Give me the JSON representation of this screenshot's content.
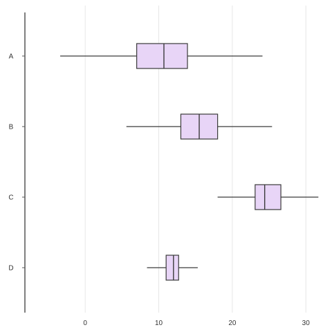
{
  "chart_data": {
    "type": "boxplot",
    "orientation": "horizontal",
    "title": "",
    "xlabel": "",
    "ylabel": "",
    "categories": [
      "A",
      "B",
      "C",
      "D"
    ],
    "boxes": [
      {
        "category": "A",
        "whisker_low": -3.4,
        "q1": 7.0,
        "median": 10.7,
        "q3": 13.9,
        "whisker_high": 24.1
      },
      {
        "category": "B",
        "whisker_low": 5.6,
        "q1": 13.0,
        "median": 15.5,
        "q3": 18.0,
        "whisker_high": 25.4
      },
      {
        "category": "C",
        "whisker_low": 18.0,
        "q1": 23.1,
        "median": 24.4,
        "q3": 26.6,
        "whisker_high": 31.7
      },
      {
        "category": "D",
        "whisker_low": 8.4,
        "q1": 11.0,
        "median": 12.0,
        "q3": 12.7,
        "whisker_high": 15.3
      }
    ],
    "x_ticks": [
      0,
      10,
      20,
      30
    ],
    "xlim": [
      -8.2,
      32.8
    ],
    "grid": true,
    "colors": {
      "box_fill": "#e8d5f7",
      "box_stroke": "#3a3a3a",
      "whisker": "#3a3a3a",
      "grid": "#e6e6e6",
      "axis": "#555555",
      "text": "#333333"
    }
  }
}
